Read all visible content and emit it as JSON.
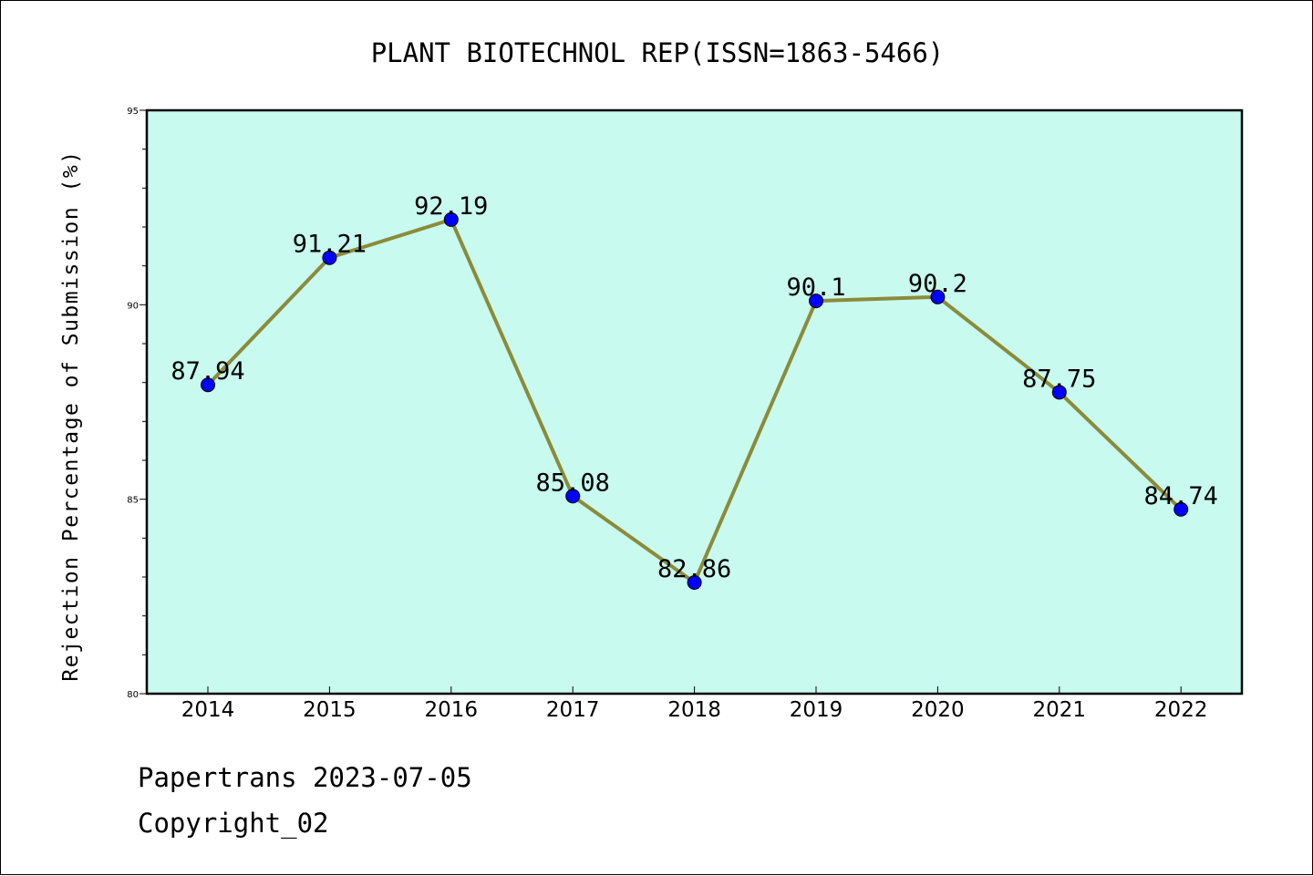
{
  "chart_data": {
    "type": "line",
    "title": "PLANT BIOTECHNOL REP(ISSN=1863-5466)",
    "xlabel": "",
    "ylabel": "Rejection Percentage of Submission (%)",
    "categories": [
      "2014",
      "2015",
      "2016",
      "2017",
      "2018",
      "2019",
      "2020",
      "2021",
      "2022"
    ],
    "series": [
      {
        "values": [
          87.94,
          91.21,
          92.19,
          85.08,
          82.86,
          90.1,
          90.2,
          87.75,
          84.74
        ],
        "data_labels": [
          "87.94",
          "91.21",
          "92.19",
          "85.08",
          "82.86",
          "90.1",
          "90.2",
          "87.75",
          "84.74"
        ]
      }
    ],
    "ylim": [
      80,
      95
    ],
    "yticks": [
      80,
      85,
      90,
      95
    ],
    "ytick_labels": [
      "80",
      "85",
      "90",
      "95"
    ],
    "grid": false,
    "colors": {
      "plot_background": "#c8faef",
      "line": "#8b8b3a",
      "marker": "#0000ff"
    }
  },
  "footer": {
    "line1": "Papertrans 2023-07-05",
    "line2": "Copyright_02"
  }
}
